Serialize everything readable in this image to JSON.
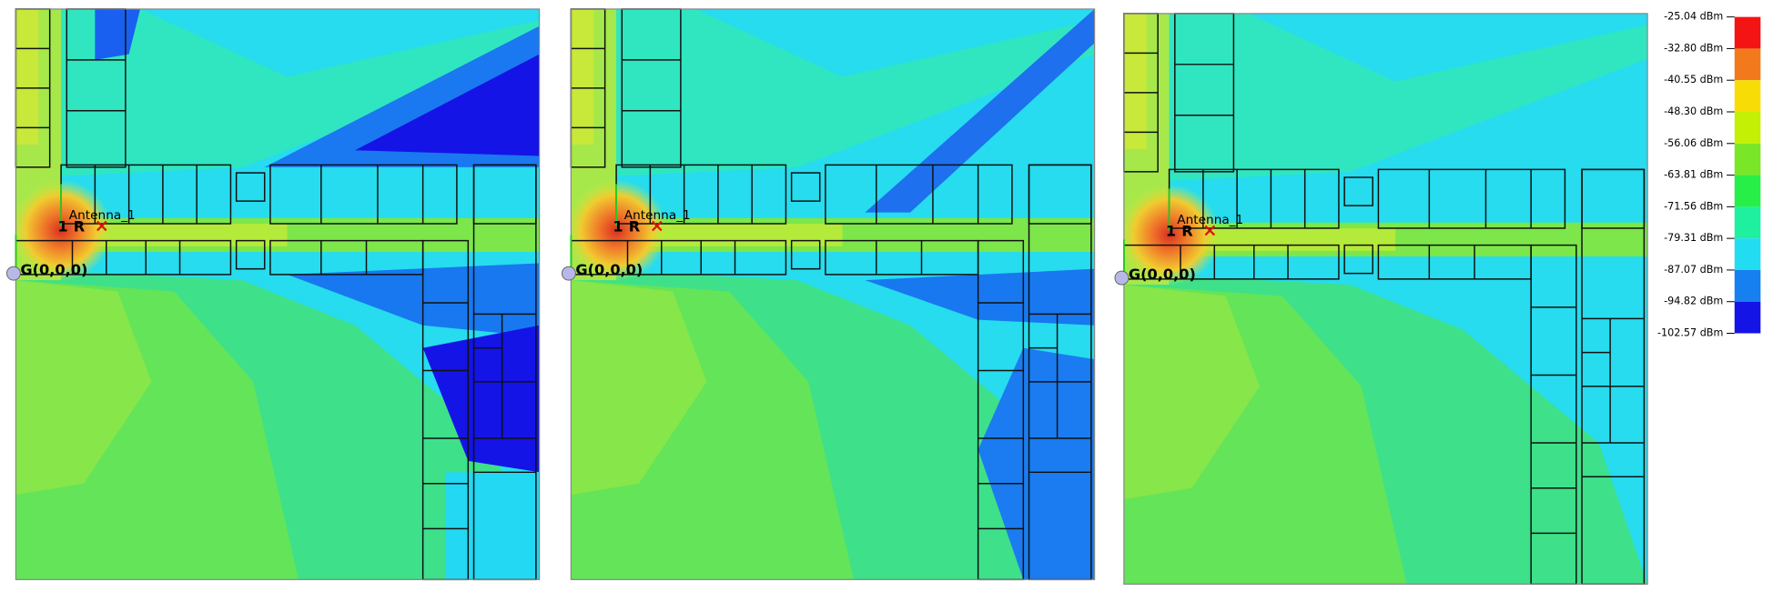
{
  "panels": [
    {
      "antenna_label": "Antenna_1",
      "antenna_index": "1",
      "receiver_label": "R",
      "origin_label": "G(0,0,0)"
    },
    {
      "antenna_label": "Antenna_1",
      "antenna_index": "1",
      "receiver_label": "R",
      "origin_label": "G(0,0,0)"
    },
    {
      "antenna_label": "Antenna_1",
      "antenna_index": "1",
      "receiver_label": "R",
      "origin_label": "G(0,0,0)"
    }
  ],
  "legend": {
    "labels": [
      "-25.04 dBm",
      "-32.80 dBm",
      "-40.55 dBm",
      "-48.30 dBm",
      "-56.06 dBm",
      "-63.81 dBm",
      "-71.56 dBm",
      "-79.31 dBm",
      "-87.07 dBm",
      "-94.82 dBm",
      "-102.57 dBm"
    ],
    "colors": [
      "#f41414",
      "#f27a1c",
      "#f8dc06",
      "#c4f006",
      "#7ae628",
      "#28ee48",
      "#1ef0a0",
      "#22dcf2",
      "#1680f0",
      "#1414e6"
    ]
  }
}
